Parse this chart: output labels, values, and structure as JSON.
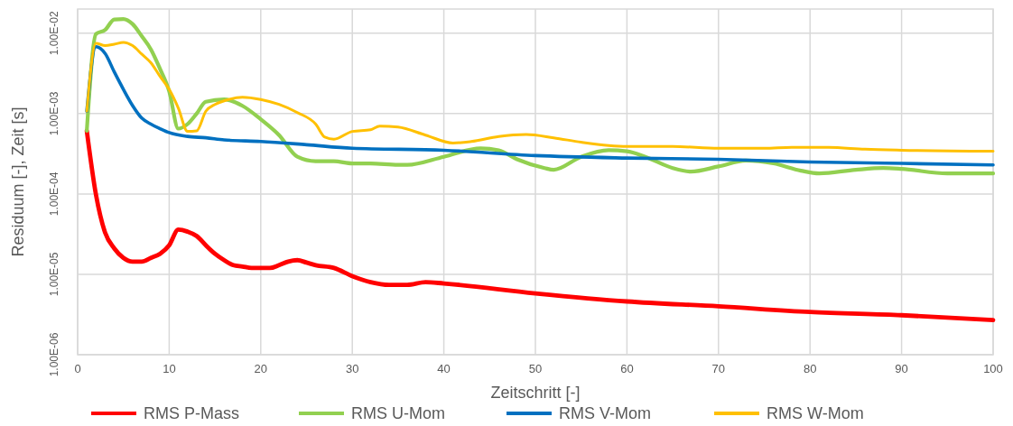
{
  "chart_data": {
    "type": "line",
    "xlabel": "Zeitschritt [-]",
    "ylabel": "Residuum [-], Zeit [s]",
    "log": "y",
    "grid": true,
    "legend": "bottom",
    "marker": "none",
    "line_style": "solid",
    "xlim": [
      0,
      100
    ],
    "xticks": [
      0,
      10,
      20,
      30,
      40,
      50,
      60,
      70,
      80,
      90,
      100
    ],
    "ylim": [
      1e-06,
      0.02
    ],
    "yticks": [
      {
        "value": 1e-06,
        "label": "1.00E-06"
      },
      {
        "value": 1e-05,
        "label": "1.00E-05"
      },
      {
        "value": 0.0001,
        "label": "1.00E-04"
      },
      {
        "value": 0.001,
        "label": "1.00E-03"
      },
      {
        "value": 0.01,
        "label": "1.00E-02"
      }
    ],
    "series": [
      {
        "name": "RMS P-Mass",
        "color": "#ff0000",
        "x": [
          1,
          2,
          3,
          4,
          5,
          6,
          7,
          8,
          9,
          10,
          11,
          12,
          13,
          14,
          15,
          16,
          17,
          18,
          19,
          20,
          21,
          22,
          23,
          24,
          25,
          26,
          28,
          30,
          32,
          34,
          36,
          38,
          40,
          50,
          60,
          70,
          80,
          90,
          100
        ],
        "values": [
          0.00061,
          9.8e-05,
          3.3e-05,
          2.1e-05,
          1.6e-05,
          1.44e-05,
          1.44e-05,
          1.6e-05,
          1.8e-05,
          2.3e-05,
          3.6e-05,
          3.4e-05,
          3e-05,
          2.3e-05,
          1.8e-05,
          1.5e-05,
          1.3e-05,
          1.25e-05,
          1.2e-05,
          1.2e-05,
          1.2e-05,
          1.3e-05,
          1.44e-05,
          1.5e-05,
          1.4e-05,
          1.3e-05,
          1.2e-05,
          9.5e-06,
          8e-06,
          7.4e-06,
          7.4e-06,
          8e-06,
          7.7e-06,
          5.8e-06,
          4.6e-06,
          4e-06,
          3.4e-06,
          3.1e-06,
          2.7e-06
        ]
      },
      {
        "name": "RMS U-Mom",
        "color": "#92d050",
        "x": [
          1,
          2,
          3,
          4,
          5,
          6,
          7,
          8,
          9,
          10,
          11,
          12,
          13,
          14,
          16,
          18,
          20,
          22,
          24,
          26,
          28,
          30,
          32,
          35,
          36,
          40,
          44,
          46,
          48,
          51,
          52,
          55,
          58,
          60,
          62,
          65,
          67,
          70,
          73,
          76,
          79,
          81,
          85,
          88,
          90,
          95,
          100
        ],
        "values": [
          0.00061,
          0.0098,
          0.011,
          0.0148,
          0.015,
          0.013,
          0.0092,
          0.0063,
          0.0036,
          0.0019,
          0.00065,
          0.00074,
          0.001,
          0.0014,
          0.0015,
          0.00125,
          0.00085,
          0.00054,
          0.00029,
          0.000255,
          0.000255,
          0.00024,
          0.00024,
          0.00023,
          0.00023,
          0.00029,
          0.00037,
          0.00035,
          0.00027,
          0.00021,
          0.0002,
          0.00029,
          0.00035,
          0.00034,
          0.00029,
          0.00021,
          0.00019,
          0.00022,
          0.00026,
          0.00024,
          0.000195,
          0.00018,
          0.0002,
          0.00021,
          0.000205,
          0.00018,
          0.00018
        ]
      },
      {
        "name": "RMS V-Mom",
        "color": "#0070c0",
        "x": [
          1,
          2,
          3,
          4,
          5,
          6,
          7,
          8,
          9,
          10,
          12,
          14,
          16,
          20,
          25,
          30,
          40,
          50,
          60,
          70,
          80,
          90,
          100
        ],
        "values": [
          0.00107,
          0.0068,
          0.0056,
          0.0033,
          0.002,
          0.00126,
          0.00088,
          0.00074,
          0.00065,
          0.00058,
          0.00052,
          0.0005,
          0.00047,
          0.00045,
          0.00041,
          0.00037,
          0.00035,
          0.0003,
          0.00028,
          0.00027,
          0.00025,
          0.00024,
          0.00023
        ]
      },
      {
        "name": "RMS W-Mom",
        "color": "#ffc000",
        "x": [
          1,
          2,
          3,
          4,
          5,
          6,
          7,
          8,
          9,
          10,
          11,
          12,
          13,
          14,
          15,
          16,
          18,
          20,
          22,
          24,
          26,
          27,
          28,
          30,
          32,
          33,
          35,
          38,
          41,
          43,
          46,
          49,
          52,
          55,
          58,
          60,
          65,
          70,
          75,
          78,
          82,
          86,
          90,
          100
        ],
        "values": [
          0.00107,
          0.0075,
          0.007,
          0.0073,
          0.0077,
          0.007,
          0.0055,
          0.0043,
          0.0029,
          0.002,
          0.00117,
          0.0006,
          0.00061,
          0.00107,
          0.0013,
          0.00144,
          0.0016,
          0.0015,
          0.0013,
          0.00103,
          0.00074,
          0.00051,
          0.00048,
          0.0006,
          0.00063,
          0.0007,
          0.00068,
          0.00054,
          0.00043,
          0.00045,
          0.00052,
          0.00055,
          0.0005,
          0.00044,
          0.0004,
          0.00039,
          0.00039,
          0.00037,
          0.00037,
          0.00038,
          0.00038,
          0.00036,
          0.00035,
          0.00034
        ]
      }
    ]
  }
}
